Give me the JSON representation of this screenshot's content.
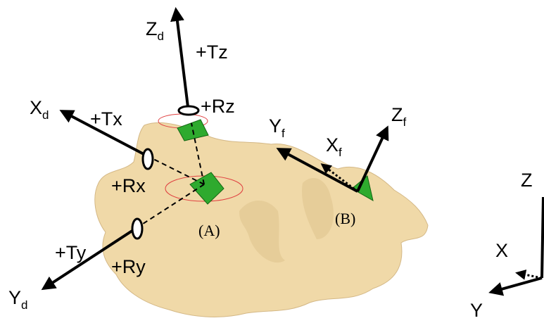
{
  "labels": [
    {
      "text": "Z",
      "sub": "d"
    },
    {
      "text": "+Tz"
    },
    {
      "text": "+Rz"
    },
    {
      "text": "X",
      "sub": "d"
    },
    {
      "text": "+Tx"
    },
    {
      "text": "+Rx"
    },
    {
      "text": "+Ty"
    },
    {
      "text": "+Ry"
    },
    {
      "text": "Y",
      "sub": "d"
    },
    {
      "text": "Y",
      "sub": "f"
    },
    {
      "text": "Z",
      "sub": "f"
    },
    {
      "text": "X",
      "sub": "f"
    },
    {
      "text": "(A)"
    },
    {
      "text": "(B)"
    },
    {
      "text": "Z"
    },
    {
      "text": "X"
    },
    {
      "text": "Y"
    }
  ]
}
